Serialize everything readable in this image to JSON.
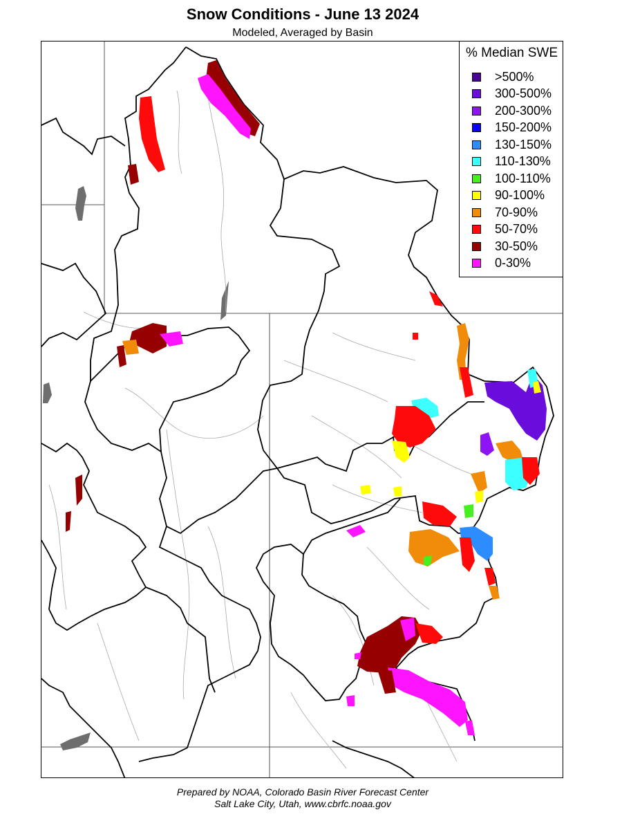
{
  "title": "Snow Conditions - June 13 2024",
  "subtitle": "Modeled, Averaged by Basin",
  "legend": {
    "title": "% Median SWE",
    "items": [
      {
        "label": ">500%",
        "color": "#4b0096"
      },
      {
        "label": "300-500%",
        "color": "#6a0ddc"
      },
      {
        "label": "200-300%",
        "color": "#8c14f5"
      },
      {
        "label": "150-200%",
        "color": "#0a00ff"
      },
      {
        "label": "130-150%",
        "color": "#2d8cff"
      },
      {
        "label": "110-130%",
        "color": "#3cffff"
      },
      {
        "label": "100-110%",
        "color": "#46f01e"
      },
      {
        "label": "90-100%",
        "color": "#ffff00"
      },
      {
        "label": "70-90%",
        "color": "#f08c0a"
      },
      {
        "label": "50-70%",
        "color": "#ff0a0a"
      },
      {
        "label": "30-50%",
        "color": "#960000"
      },
      {
        "label": "0-30%",
        "color": "#ff14ff"
      }
    ]
  },
  "footer": {
    "line1": "Prepared by NOAA, Colorado Basin River Forecast Center",
    "line2": "Salt Lake City, Utah, www.cbrfc.noaa.gov"
  }
}
